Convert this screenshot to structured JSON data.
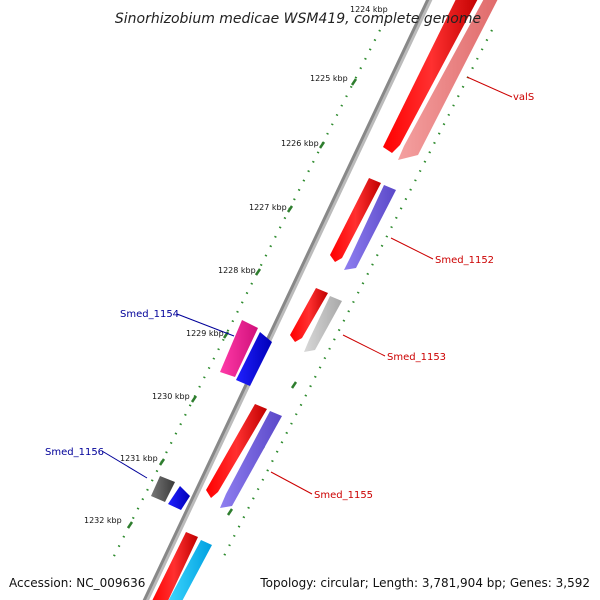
{
  "title": "Sinorhizobium medicae WSM419, complete genome",
  "top_partial_tick": "1224 kbp",
  "ticks": [
    "1225 kbp",
    "1226 kbp",
    "1227 kbp",
    "1228 kbp",
    "1229 kbp",
    "1230 kbp",
    "1231 kbp",
    "1232 kbp"
  ],
  "genes": [
    {
      "name": "valS",
      "strand": "forward"
    },
    {
      "name": "Smed_1152",
      "strand": "forward"
    },
    {
      "name": "Smed_1153",
      "strand": "forward"
    },
    {
      "name": "Smed_1154",
      "strand": "reverse"
    },
    {
      "name": "Smed_1155",
      "strand": "forward"
    },
    {
      "name": "Smed_1156",
      "strand": "reverse"
    }
  ],
  "footer": {
    "accession": "Accession: NC_009636",
    "summary": "Topology: circular; Length: 3,781,904 bp; Genes: 3,592"
  },
  "colors": {
    "cds_forward": "#ff0000",
    "cds_reverse": "#ff0000",
    "gene_light_red": "#f08080",
    "gene_purple": "#7b68ee",
    "gene_pink": "#ff1493",
    "gene_blue": "#0000ee",
    "gene_gray": "#c0c0c0",
    "gene_dark_gray": "#555555",
    "gene_cyan": "#00bfff",
    "backbone": "#888888",
    "gc_dots": "#2e8b2e",
    "label_forward": "#cc0000",
    "label_reverse": "#000099"
  }
}
